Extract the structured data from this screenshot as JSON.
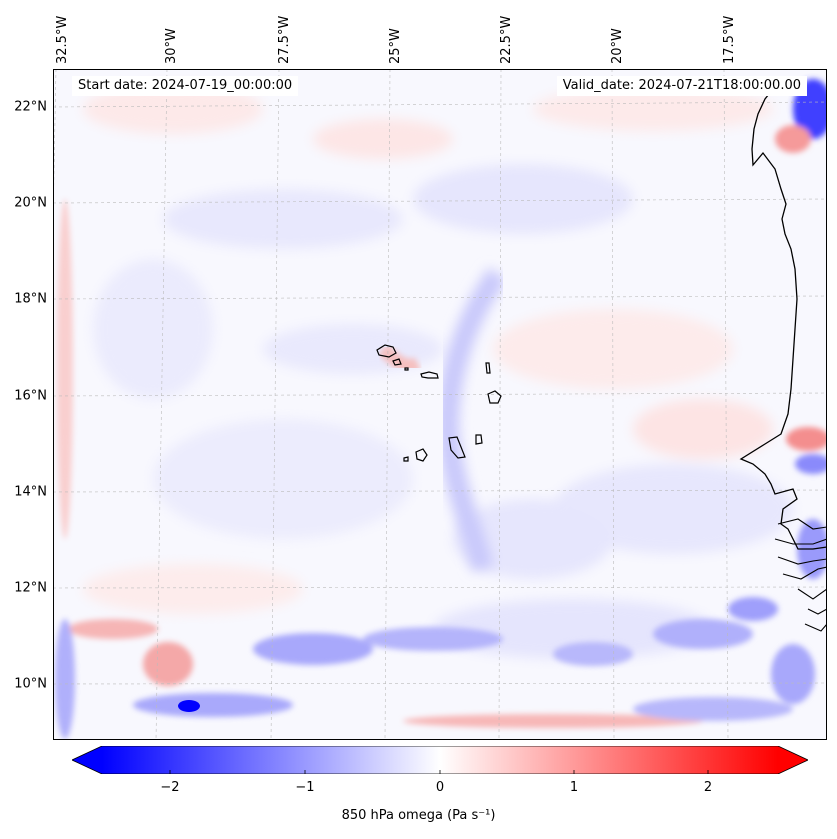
{
  "map": {
    "title_left": "Start date: 2024-07-19_00:00:00",
    "title_right": "Valid_date: 2024-07-21T18:00:00.00",
    "lon_labels": [
      "32.5°W",
      "30°W",
      "27.5°W",
      "25°W",
      "22.5°W",
      "20°W",
      "17.5°W"
    ],
    "lat_labels": [
      "22°N",
      "20°N",
      "18°N",
      "16°N",
      "14°N",
      "12°N",
      "10°N"
    ],
    "islands": [
      "Santo Antão",
      "São Vicente",
      "Santa Luzia",
      "São Nicolau",
      "Sal",
      "Boa Vista",
      "Maio",
      "Santiago",
      "Fogo",
      "Brava"
    ]
  },
  "colorbar": {
    "ticks": [
      "−2",
      "−1",
      "0",
      "1",
      "2"
    ],
    "label": "850 hPa omega (Pa s⁻¹)",
    "colors": {
      "negative": "#0000ff",
      "zero": "#ffffff",
      "positive": "#ff0000"
    }
  }
}
